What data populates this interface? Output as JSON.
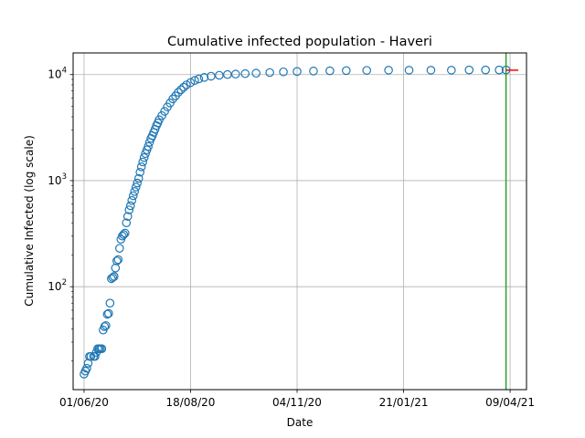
{
  "chart_data": {
    "type": "scatter",
    "title": "Cumulative infected population - Haveri",
    "xlabel": "Date",
    "ylabel": "Cumulative Infected (log scale)",
    "yscale": "log",
    "xlim": [
      "2020-05-24",
      "2021-04-21"
    ],
    "ylim": [
      10.7,
      16000
    ],
    "x_ticks": [
      {
        "date": "2020-06-01",
        "label": "01/06/20"
      },
      {
        "date": "2020-08-18",
        "label": "18/08/20"
      },
      {
        "date": "2020-11-04",
        "label": "04/11/20"
      },
      {
        "date": "2021-01-21",
        "label": "21/01/21"
      },
      {
        "date": "2021-04-09",
        "label": "09/04/21"
      }
    ],
    "y_ticks": [
      {
        "value": 100,
        "base": "10",
        "exp": "2"
      },
      {
        "value": 1000,
        "base": "10",
        "exp": "3"
      },
      {
        "value": 10000,
        "base": "10",
        "exp": "4"
      }
    ],
    "grid": true,
    "marker_color": "#1f77b4",
    "vline": {
      "date": "2021-04-06",
      "color": "#2ca02c"
    },
    "forecast_segment": {
      "x": [
        "2021-04-06",
        "2021-04-15"
      ],
      "y": [
        11000,
        11000
      ],
      "color": "#ff0000"
    },
    "series": [
      {
        "points": [
          [
            "2020-06-01",
            15
          ],
          [
            "2020-06-02",
            16
          ],
          [
            "2020-06-03",
            17
          ],
          [
            "2020-06-04",
            19
          ],
          [
            "2020-06-05",
            22
          ],
          [
            "2020-06-06",
            22
          ],
          [
            "2020-06-08",
            22
          ],
          [
            "2020-06-09",
            22
          ],
          [
            "2020-06-10",
            24
          ],
          [
            "2020-06-11",
            26
          ],
          [
            "2020-06-12",
            26
          ],
          [
            "2020-06-13",
            26
          ],
          [
            "2020-06-14",
            26
          ],
          [
            "2020-06-15",
            39
          ],
          [
            "2020-06-16",
            42
          ],
          [
            "2020-06-17",
            43
          ],
          [
            "2020-06-18",
            55
          ],
          [
            "2020-06-19",
            56
          ],
          [
            "2020-06-20",
            70
          ],
          [
            "2020-06-21",
            119
          ],
          [
            "2020-06-22",
            122
          ],
          [
            "2020-06-23",
            125
          ],
          [
            "2020-06-24",
            150
          ],
          [
            "2020-06-25",
            175
          ],
          [
            "2020-06-26",
            180
          ],
          [
            "2020-06-27",
            230
          ],
          [
            "2020-06-28",
            280
          ],
          [
            "2020-06-29",
            300
          ],
          [
            "2020-06-30",
            310
          ],
          [
            "2020-07-01",
            320
          ],
          [
            "2020-07-02",
            400
          ],
          [
            "2020-07-03",
            460
          ],
          [
            "2020-07-04",
            530
          ],
          [
            "2020-07-05",
            580
          ],
          [
            "2020-07-06",
            650
          ],
          [
            "2020-07-07",
            720
          ],
          [
            "2020-07-08",
            790
          ],
          [
            "2020-07-09",
            870
          ],
          [
            "2020-07-10",
            950
          ],
          [
            "2020-07-11",
            1050
          ],
          [
            "2020-07-12",
            1200
          ],
          [
            "2020-07-13",
            1350
          ],
          [
            "2020-07-14",
            1500
          ],
          [
            "2020-07-15",
            1650
          ],
          [
            "2020-07-16",
            1800
          ],
          [
            "2020-07-17",
            1950
          ],
          [
            "2020-07-18",
            2100
          ],
          [
            "2020-07-19",
            2300
          ],
          [
            "2020-07-20",
            2500
          ],
          [
            "2020-07-21",
            2650
          ],
          [
            "2020-07-22",
            2850
          ],
          [
            "2020-07-23",
            3050
          ],
          [
            "2020-07-24",
            3300
          ],
          [
            "2020-07-25",
            3500
          ],
          [
            "2020-07-26",
            3750
          ],
          [
            "2020-07-28",
            4100
          ],
          [
            "2020-07-30",
            4500
          ],
          [
            "2020-08-01",
            4950
          ],
          [
            "2020-08-03",
            5400
          ],
          [
            "2020-08-05",
            5900
          ],
          [
            "2020-08-07",
            6300
          ],
          [
            "2020-08-09",
            6800
          ],
          [
            "2020-08-11",
            7200
          ],
          [
            "2020-08-13",
            7600
          ],
          [
            "2020-08-15",
            8000
          ],
          [
            "2020-08-18",
            8400
          ],
          [
            "2020-08-21",
            8800
          ],
          [
            "2020-08-24",
            9100
          ],
          [
            "2020-08-28",
            9400
          ],
          [
            "2020-09-02",
            9650
          ],
          [
            "2020-09-08",
            9850
          ],
          [
            "2020-09-14",
            10000
          ],
          [
            "2020-09-20",
            10100
          ],
          [
            "2020-09-27",
            10200
          ],
          [
            "2020-10-05",
            10300
          ],
          [
            "2020-10-15",
            10450
          ],
          [
            "2020-10-25",
            10600
          ],
          [
            "2020-11-04",
            10700
          ],
          [
            "2020-11-16",
            10800
          ],
          [
            "2020-11-28",
            10850
          ],
          [
            "2020-12-10",
            10900
          ],
          [
            "2020-12-25",
            10950
          ],
          [
            "2021-01-10",
            11000
          ],
          [
            "2021-01-25",
            11000
          ],
          [
            "2021-02-10",
            11000
          ],
          [
            "2021-02-25",
            11000
          ],
          [
            "2021-03-10",
            11050
          ],
          [
            "2021-03-22",
            11050
          ],
          [
            "2021-04-01",
            11050
          ],
          [
            "2021-04-06",
            11050
          ]
        ]
      }
    ]
  }
}
